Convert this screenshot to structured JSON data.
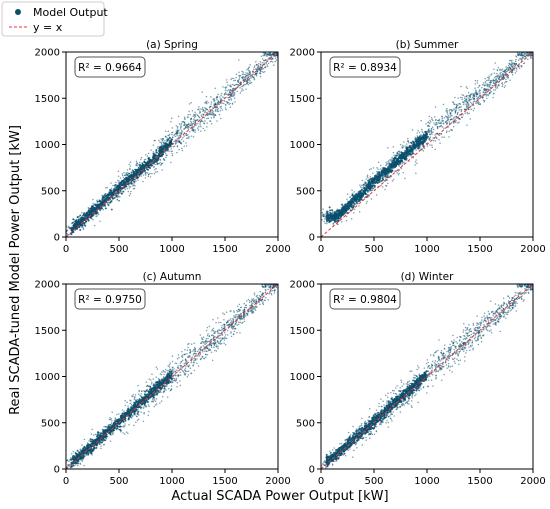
{
  "figure": {
    "xlabel": "Actual SCADA Power Output [kW]",
    "ylabel": "Real SCADA-tuned Model Power Output [kW]"
  },
  "legend": {
    "placement": "top-left",
    "entries": [
      {
        "label": "Model Output",
        "marker": "dot",
        "color": "#0b4f6c"
      },
      {
        "label": "y = x",
        "marker": "dashed-line",
        "color": "#e8353b"
      }
    ]
  },
  "colors": {
    "points": "#0b4f6c",
    "identity_line": "#e8353b"
  },
  "chart_data": [
    {
      "type": "scatter",
      "title": "(a) Spring",
      "r2_label": "R² = 0.9664",
      "r2": 0.9664,
      "xlim": [
        0,
        2000
      ],
      "ylim": [
        0,
        2000
      ],
      "xticks": [
        0,
        500,
        1000,
        1500,
        2000
      ],
      "yticks": [
        0,
        500,
        1000,
        1500,
        2000
      ],
      "grid": false,
      "series": [
        {
          "name": "Model Output",
          "x": [
            50,
            150,
            300,
            500,
            700,
            850,
            950,
            1200,
            1500,
            1800,
            2000
          ],
          "y": [
            80,
            170,
            320,
            530,
            720,
            860,
            980,
            1230,
            1510,
            1800,
            1990
          ]
        },
        {
          "name": "y = x",
          "x": [
            0,
            2000
          ],
          "y": [
            0,
            2000
          ]
        }
      ]
    },
    {
      "type": "scatter",
      "title": "(b) Summer",
      "r2_label": "R² = 0.8934",
      "r2": 0.8934,
      "xlim": [
        0,
        2000
      ],
      "ylim": [
        0,
        2000
      ],
      "xticks": [
        0,
        500,
        1000,
        1500,
        2000
      ],
      "yticks": [
        0,
        500,
        1000,
        1500,
        2000
      ],
      "grid": false,
      "series": [
        {
          "name": "Model Output",
          "x": [
            150,
            300,
            500,
            700,
            850,
            950,
            1200,
            1500,
            1800,
            2000
          ],
          "y": [
            220,
            380,
            600,
            800,
            950,
            1050,
            1270,
            1550,
            1820,
            1990
          ]
        },
        {
          "name": "y = x",
          "x": [
            0,
            2000
          ],
          "y": [
            0,
            2000
          ]
        }
      ]
    },
    {
      "type": "scatter",
      "title": "(c) Autumn",
      "r2_label": "R² = 0.9750",
      "r2": 0.975,
      "xlim": [
        0,
        2000
      ],
      "ylim": [
        0,
        2000
      ],
      "xticks": [
        0,
        500,
        1000,
        1500,
        2000
      ],
      "yticks": [
        0,
        500,
        1000,
        1500,
        2000
      ],
      "grid": false,
      "series": [
        {
          "name": "Model Output",
          "x": [
            30,
            150,
            300,
            500,
            700,
            850,
            950,
            1200,
            1500,
            1800,
            2000
          ],
          "y": [
            60,
            160,
            310,
            510,
            710,
            870,
            960,
            1220,
            1510,
            1800,
            1990
          ]
        },
        {
          "name": "y = x",
          "x": [
            0,
            2000
          ],
          "y": [
            0,
            2000
          ]
        }
      ]
    },
    {
      "type": "scatter",
      "title": "(d) Winter",
      "r2_label": "R² = 0.9804",
      "r2": 0.9804,
      "xlim": [
        0,
        2000
      ],
      "ylim": [
        0,
        2000
      ],
      "xticks": [
        0,
        500,
        1000,
        1500,
        2000
      ],
      "yticks": [
        0,
        500,
        1000,
        1500,
        2000
      ],
      "grid": false,
      "series": [
        {
          "name": "Model Output",
          "x": [
            30,
            150,
            300,
            500,
            700,
            850,
            950,
            1200,
            1500,
            1800,
            2000
          ],
          "y": [
            60,
            160,
            310,
            510,
            720,
            870,
            970,
            1220,
            1510,
            1800,
            1990
          ]
        },
        {
          "name": "y = x",
          "x": [
            0,
            2000
          ],
          "y": [
            0,
            2000
          ]
        }
      ]
    }
  ]
}
